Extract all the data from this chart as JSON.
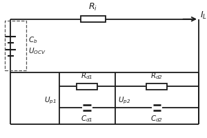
{
  "bg_color": "#ffffff",
  "line_color": "#1a1a1a",
  "text_color": "#1a1a1a",
  "dashed_color": "#555555",
  "fig_width": 3.0,
  "fig_height": 2.0,
  "dpi": 100,
  "lw": 1.3
}
